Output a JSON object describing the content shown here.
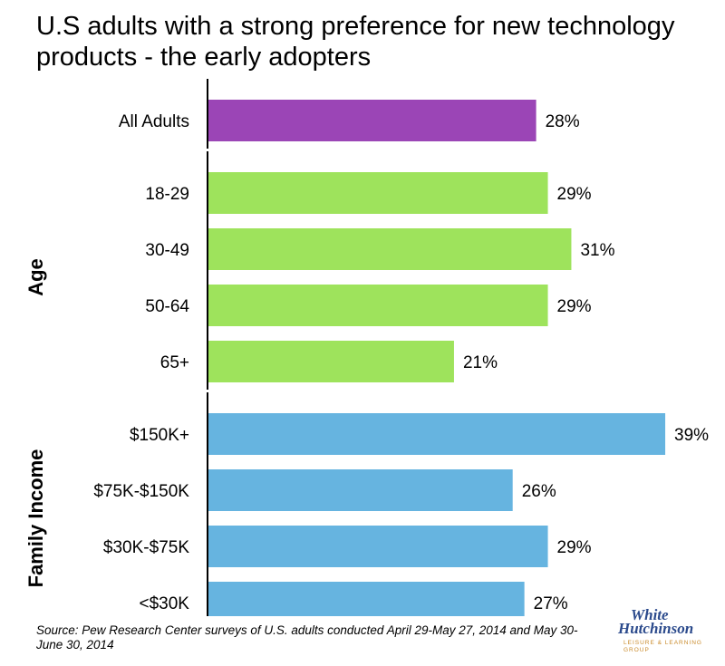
{
  "title": "U.S adults with a strong preference for new technology products - the early adopters",
  "source": "Source: Pew Research Center surveys of U.S. adults conducted April 29-May 27, 2014 and May 30-June 30, 2014",
  "logo": {
    "line1": "White",
    "line2": "Hutchinson",
    "line3": "LEISURE & LEARNING GROUP"
  },
  "colors": {
    "all": "#9b45b6",
    "age": "#9ee35c",
    "income": "#66b4e0"
  },
  "chart_data": {
    "type": "bar",
    "orientation": "horizontal",
    "title": "U.S adults with a strong preference for new technology products - the early adopters",
    "value_suffix": "%",
    "xlim": [
      0,
      40
    ],
    "grid": false,
    "groups": [
      {
        "name": "",
        "color": "#9b45b6",
        "categories": [
          "All Adults"
        ],
        "values": [
          28
        ]
      },
      {
        "name": "Age",
        "color": "#9ee35c",
        "categories": [
          "18-29",
          "30-49",
          "50-64",
          "65+"
        ],
        "values": [
          29,
          31,
          29,
          21
        ]
      },
      {
        "name": "Family Income",
        "color": "#66b4e0",
        "categories": [
          "$150K+",
          "$75K-$150K",
          "$30K-$75K",
          "<$30K"
        ],
        "values": [
          39,
          26,
          29,
          27
        ]
      }
    ]
  }
}
